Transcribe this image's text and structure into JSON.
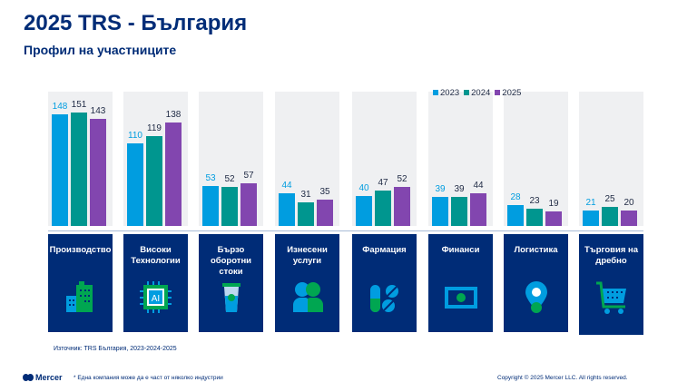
{
  "header": {
    "title": "2025 TRS - България",
    "subtitle": "Профил на участниците"
  },
  "colors": {
    "y2023": "#009de0",
    "y2024": "#00968f",
    "y2025": "#8246af",
    "navy": "#002c77"
  },
  "chart_data": {
    "type": "bar",
    "title": "",
    "categories": [
      "Производство",
      "Високи Технологии",
      "Бързо оборотни стоки",
      "Изнесени услуги",
      "Фармация",
      "Финанси",
      "Логистика",
      "Търговия на дребно"
    ],
    "series": [
      {
        "name": "2023",
        "values": [
          148,
          110,
          53,
          44,
          40,
          39,
          28,
          21
        ]
      },
      {
        "name": "2024",
        "values": [
          151,
          119,
          52,
          31,
          47,
          39,
          23,
          25
        ]
      },
      {
        "name": "2025",
        "values": [
          143,
          138,
          57,
          35,
          52,
          44,
          19,
          20
        ]
      }
    ],
    "legend_position": "top",
    "ylim": [
      0,
      175
    ]
  },
  "cards": [
    {
      "label": "Производство",
      "icon": "buildings-icon"
    },
    {
      "label": "Високи Технологии",
      "icon": "ai-chip-icon"
    },
    {
      "label": "Бързо оборотни стоки",
      "icon": "coffee-cup-icon"
    },
    {
      "label": "Изнесени услуги",
      "icon": "people-icon"
    },
    {
      "label": "Фармация",
      "icon": "pills-icon"
    },
    {
      "label": "Финанси",
      "icon": "banknote-icon"
    },
    {
      "label": "Логистика",
      "icon": "location-pin-icon"
    },
    {
      "label": "Търговия на дребно",
      "icon": "shopping-cart-icon"
    }
  ],
  "footer": {
    "source": "Източник: TRS България, 2023-2024-2025",
    "logo": "Mercer",
    "note": "* Една компания може да е част от няколко индустрии",
    "copyright": "Copyright © 2025 Mercer LLC. All rights reserved."
  }
}
